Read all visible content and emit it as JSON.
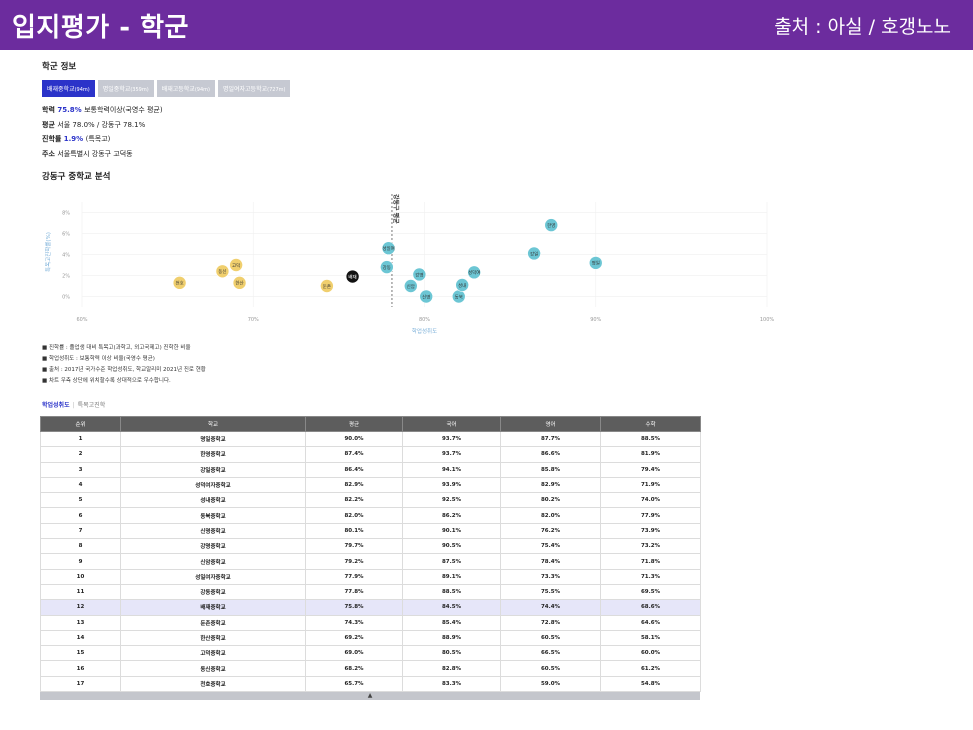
{
  "header": {
    "title": "입지평가 - 학군",
    "credit": "출처 : 아실 / 호갱노노"
  },
  "school_info": {
    "section_title": "학군 정보",
    "tabs": [
      {
        "name": "배재중학교",
        "dist": "(94m)",
        "active": true
      },
      {
        "name": "명일중학교",
        "dist": "(359m)",
        "active": false
      },
      {
        "name": "배재고등학교",
        "dist": "(94m)",
        "active": false
      },
      {
        "name": "명일여자고등학교",
        "dist": "(727m)",
        "active": false
      }
    ],
    "rows": [
      {
        "label": "학력",
        "value": "75.8%",
        "note": "보통학력이상(국영수 평균)"
      },
      {
        "label": "평균",
        "value": "",
        "note": "서울 78.0% / 강동구 78.1%"
      },
      {
        "label": "진학률",
        "value": "1.9%",
        "note": "(특목고)"
      },
      {
        "label": "주소",
        "value": "",
        "note": "서울특별시 강동구 고덕동"
      }
    ]
  },
  "analysis": {
    "section_title": "강동구 중학교 분석"
  },
  "chart_data": {
    "type": "scatter",
    "xlabel": "학업성취도",
    "ylabel": "특목고진학률(%)",
    "xlim": [
      60,
      100
    ],
    "ylim": [
      -1,
      9
    ],
    "x_ticks": [
      "60%",
      "70%",
      "80%",
      "90%",
      "100%"
    ],
    "y_ticks": [
      "0%",
      "2%",
      "4%",
      "6%",
      "8%"
    ],
    "reference_line": {
      "x": 78.1,
      "label": "강동구 평균"
    },
    "colors": {
      "below": "#f0cf6e",
      "above": "#6cc6d4",
      "current": "#111111"
    },
    "points": [
      {
        "label": "천호",
        "x": 65.7,
        "y": 1.3,
        "group": "below"
      },
      {
        "label": "동신",
        "x": 68.2,
        "y": 2.4,
        "group": "below"
      },
      {
        "label": "고덕",
        "x": 69.0,
        "y": 3.0,
        "group": "below"
      },
      {
        "label": "한산",
        "x": 69.2,
        "y": 1.3,
        "group": "below"
      },
      {
        "label": "둔촌",
        "x": 74.3,
        "y": 1.0,
        "group": "below"
      },
      {
        "label": "배재",
        "x": 75.8,
        "y": 1.9,
        "group": "current"
      },
      {
        "label": "강동",
        "x": 77.8,
        "y": 2.8,
        "group": "above"
      },
      {
        "label": "성일여",
        "x": 77.9,
        "y": 4.6,
        "group": "above"
      },
      {
        "label": "신암",
        "x": 79.2,
        "y": 1.0,
        "group": "above"
      },
      {
        "label": "강명",
        "x": 79.7,
        "y": 2.1,
        "group": "above"
      },
      {
        "label": "신명",
        "x": 80.1,
        "y": 0.0,
        "group": "above"
      },
      {
        "label": "동북",
        "x": 82.0,
        "y": 0.0,
        "group": "above"
      },
      {
        "label": "성내",
        "x": 82.2,
        "y": 1.1,
        "group": "above"
      },
      {
        "label": "성덕여",
        "x": 82.9,
        "y": 2.3,
        "group": "above"
      },
      {
        "label": "강일",
        "x": 86.4,
        "y": 4.1,
        "group": "above"
      },
      {
        "label": "한영",
        "x": 87.4,
        "y": 6.8,
        "group": "above"
      },
      {
        "label": "명일",
        "x": 90.0,
        "y": 3.2,
        "group": "above"
      }
    ]
  },
  "notes": [
    "■ 진학률 : 졸업생 대비 특목고(과학고, 외고국제고) 진학한 비율",
    "■ 학업성취도 : 보통학력 이상 비율(국영수 평균)",
    "■ 출처 : 2017년 국가수준 학업성취도, 학교알리미 2021년 진로 현황",
    "■ 차트 우측 상단에 위치할수록 상대적으로 우수합니다."
  ],
  "table_tabs": {
    "active": "학업성취도",
    "inactive": "특목고진학"
  },
  "table": {
    "headers": [
      "순위",
      "학교",
      "평균",
      "국어",
      "영어",
      "수학"
    ],
    "highlight_school": "배재중학교",
    "rows": [
      [
        "1",
        "명일중학교",
        "90.0%",
        "93.7%",
        "87.7%",
        "88.5%"
      ],
      [
        "2",
        "한영중학교",
        "87.4%",
        "93.7%",
        "86.6%",
        "81.9%"
      ],
      [
        "3",
        "강일중학교",
        "86.4%",
        "94.1%",
        "85.8%",
        "79.4%"
      ],
      [
        "4",
        "성덕여자중학교",
        "82.9%",
        "93.9%",
        "82.9%",
        "71.9%"
      ],
      [
        "5",
        "성내중학교",
        "82.2%",
        "92.5%",
        "80.2%",
        "74.0%"
      ],
      [
        "6",
        "동북중학교",
        "82.0%",
        "86.2%",
        "82.0%",
        "77.9%"
      ],
      [
        "7",
        "신명중학교",
        "80.1%",
        "90.1%",
        "76.2%",
        "73.9%"
      ],
      [
        "8",
        "강명중학교",
        "79.7%",
        "90.5%",
        "75.4%",
        "73.2%"
      ],
      [
        "9",
        "신암중학교",
        "79.2%",
        "87.5%",
        "78.4%",
        "71.8%"
      ],
      [
        "10",
        "성일여자중학교",
        "77.9%",
        "89.1%",
        "73.3%",
        "71.3%"
      ],
      [
        "11",
        "강동중학교",
        "77.8%",
        "88.5%",
        "75.5%",
        "69.5%"
      ],
      [
        "12",
        "배재중학교",
        "75.8%",
        "84.5%",
        "74.4%",
        "68.6%"
      ],
      [
        "13",
        "둔촌중학교",
        "74.3%",
        "85.4%",
        "72.8%",
        "64.6%"
      ],
      [
        "14",
        "한산중학교",
        "69.2%",
        "88.9%",
        "60.5%",
        "58.1%"
      ],
      [
        "15",
        "고덕중학교",
        "69.0%",
        "80.5%",
        "66.5%",
        "60.0%"
      ],
      [
        "16",
        "동신중학교",
        "68.2%",
        "82.8%",
        "60.5%",
        "61.2%"
      ],
      [
        "17",
        "천호중학교",
        "65.7%",
        "83.3%",
        "59.0%",
        "54.8%"
      ]
    ]
  },
  "scroll": {
    "arrow": "▲"
  }
}
